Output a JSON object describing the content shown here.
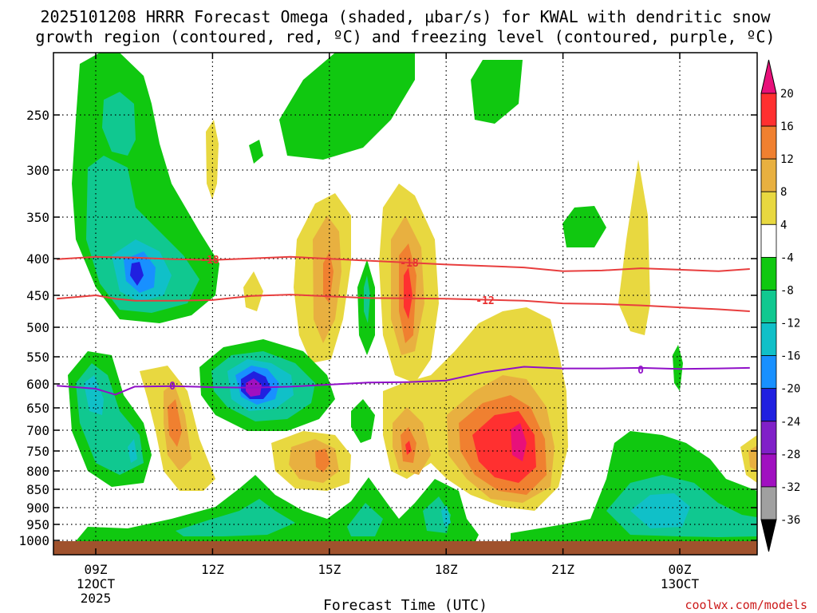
{
  "chart_data": {
    "type": "heatmap",
    "title_line1": "2025101208 HRRR Forecast Omega (shaded, µbar/s) for KWAL with dendritic snow",
    "title_line2": "growth region (contoured, red, ºC) and freezing level (contoured, purple, ºC)",
    "xlabel": "Forecast Time (UTC)",
    "y_ticks": [
      250,
      300,
      350,
      400,
      450,
      500,
      550,
      600,
      650,
      700,
      750,
      800,
      850,
      900,
      950,
      1000
    ],
    "y_range": [
      200,
      1010
    ],
    "x_range": [
      8,
      25.8
    ],
    "x_ticks": [
      {
        "hour": 9,
        "label": "09Z",
        "sub1": "12OCT",
        "sub2": "2025"
      },
      {
        "hour": 12,
        "label": "12Z",
        "sub1": "",
        "sub2": ""
      },
      {
        "hour": 15,
        "label": "15Z",
        "sub1": "",
        "sub2": ""
      },
      {
        "hour": 18,
        "label": "18Z",
        "sub1": "",
        "sub2": ""
      },
      {
        "hour": 21,
        "label": "21Z",
        "sub1": "",
        "sub2": ""
      },
      {
        "hour": 24,
        "label": "00Z",
        "sub1": "13OCT",
        "sub2": ""
      }
    ],
    "colorbar": {
      "labels": [
        "20",
        "16",
        "12",
        "8",
        "4",
        "-4",
        "-8",
        "-12",
        "-16",
        "-20",
        "-24",
        "-28",
        "-32",
        "-36"
      ],
      "levels": [
        {
          "range": "16 to 20",
          "color": "#ff3030"
        },
        {
          "range": "12 to 16",
          "color": "#f08030"
        },
        {
          "range": "8 to 12",
          "color": "#e8b040"
        },
        {
          "range": "4 to 8",
          "color": "#e8d840"
        },
        {
          "range": "-4 to 4",
          "color": "#ffffff"
        },
        {
          "range": "-8 to -4",
          "color": "#10c810"
        },
        {
          "range": "-12 to -8",
          "color": "#10c890"
        },
        {
          "range": "-16 to -12",
          "color": "#10c0c8"
        },
        {
          "range": "-20 to -16",
          "color": "#1890ff"
        },
        {
          "range": "-24 to -20",
          "color": "#2020e0"
        },
        {
          "range": "-28 to -24",
          "color": "#8020c8"
        },
        {
          "range": "-32 to -28",
          "color": "#a010c0"
        },
        {
          "range": "-36 to -32",
          "color": "#a0a0a0"
        }
      ],
      "max_color": "#e8107a",
      "min_color": "#000000"
    },
    "contours": {
      "dgz_labels": [
        "-18",
        "-18",
        "-12"
      ],
      "freezing_labels": [
        "0",
        "0"
      ],
      "dgz_top": {
        "hours": [
          8,
          9,
          10,
          11,
          12,
          14,
          16,
          18,
          20,
          21,
          22,
          23,
          24,
          25,
          25.8
        ],
        "pressure": [
          400,
          397,
          398,
          400,
          401,
          397,
          402,
          407,
          411,
          416,
          415,
          412,
          414,
          416,
          413
        ]
      },
      "dgz_bottom": {
        "hours": [
          8,
          9,
          9.5,
          10,
          11,
          12,
          13,
          14,
          16,
          18,
          20,
          21,
          22,
          23,
          24,
          25,
          25.8
        ],
        "pressure": [
          455,
          450,
          455,
          458,
          458,
          457,
          451,
          449,
          454,
          455,
          458,
          462,
          463,
          465,
          468,
          471,
          474
        ]
      },
      "freezing": {
        "hours": [
          8,
          9,
          9.5,
          10,
          11,
          12,
          13,
          14,
          15,
          16,
          17,
          18,
          19,
          20,
          21,
          22,
          23,
          24,
          25,
          25.8
        ],
        "pressure": [
          604,
          610,
          622,
          606,
          605,
          607,
          608,
          606,
          602,
          598,
          597,
          594,
          578,
          568,
          571,
          571,
          570,
          572,
          571,
          570
        ]
      }
    },
    "ground_color": "#a0522d",
    "credit": "coolwx.com/models"
  }
}
